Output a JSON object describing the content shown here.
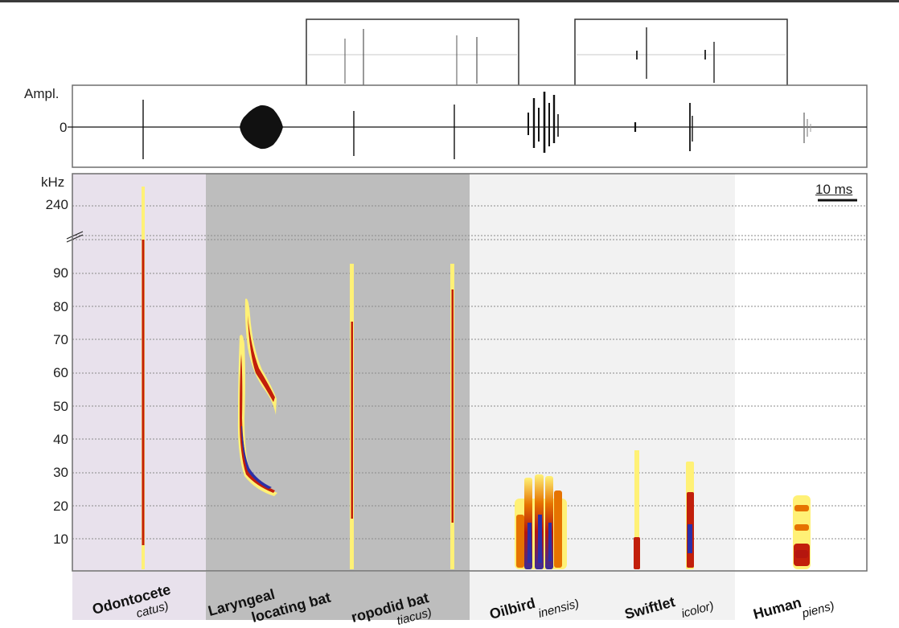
{
  "amplitude_label": "Ampl.",
  "amplitude_zero": "0",
  "frequency_unit": "kHz",
  "freq_ticks": [
    "240",
    "90",
    "80",
    "70",
    "60",
    "50",
    "40",
    "30",
    "20",
    "10"
  ],
  "scale_bar": "10 ms",
  "groups": [
    {
      "name": "Odontocete",
      "species": "catus)",
      "bg": "#e8e1ec"
    },
    {
      "name": "Laryngeal",
      "name2": "locating bat",
      "species": "",
      "bg": "#bdbdbd"
    },
    {
      "name": "ropodid bat",
      "species": "tiacus)",
      "bg": "#bdbdbd"
    },
    {
      "name": "Oilbird",
      "species": "inensis)",
      "bg": "#f2f2f2"
    },
    {
      "name": "Swiftlet",
      "species": "icolor)",
      "bg": "#f2f2f2"
    },
    {
      "name": "Human",
      "species": "piens)",
      "bg": "#ffffff"
    }
  ],
  "colors": {
    "frame": "#6e6e6e",
    "grid": "#8a8a8a",
    "hot_yellow": "#fff176",
    "hot_red": "#c21f0b",
    "hot_blue": "#2b2fa8"
  }
}
